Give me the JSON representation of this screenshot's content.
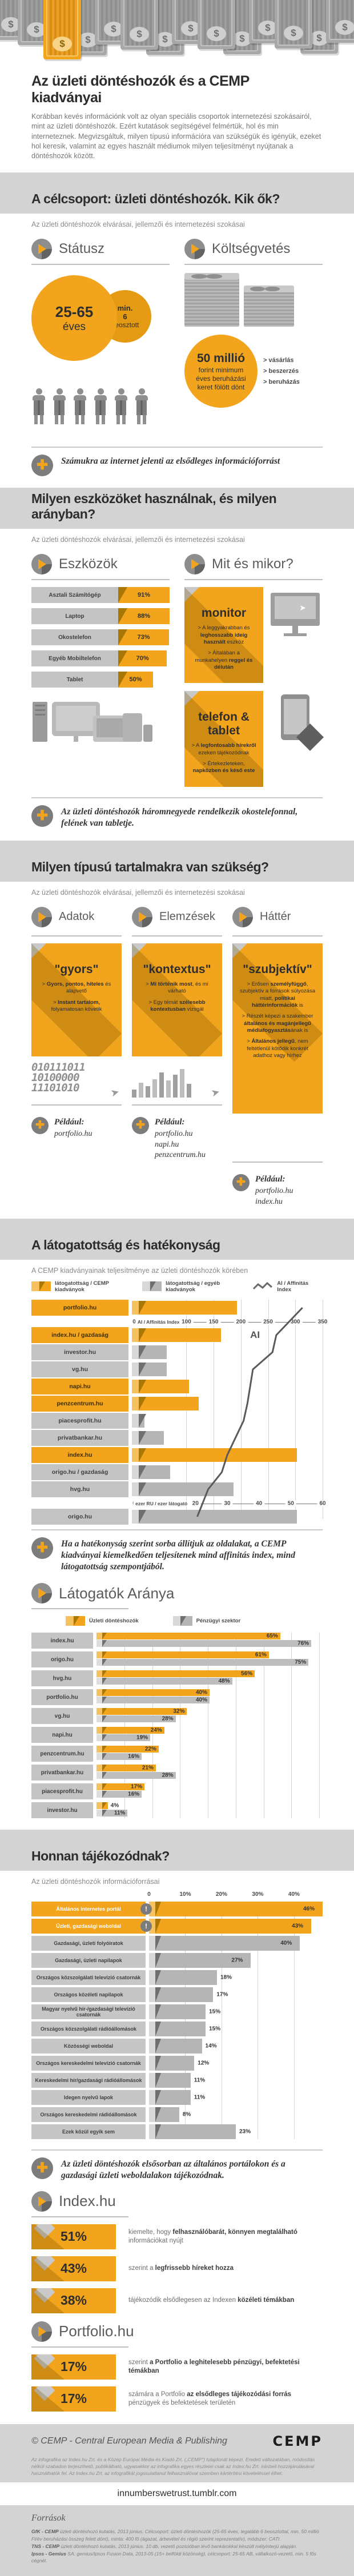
{
  "accent_color": "#F2A41C",
  "gray_color": "#B5B5B5",
  "header": {
    "title": "Az üzleti döntéshozók és a CEMP kiadványai",
    "intro": "Korábban kevés információnk volt az olyan speciális csoportok internetezési szokásairól, mint az üzleti döntéshozók. Ezért kutatások segítségével felmértük, hol és min interneteznek. Megvizsgáltuk, milyen típusú információra van szükségük és igényük, ezeket hol keresik, valamint az egyes használt médiumok milyen teljesítményt nyújtanak a döntéshozók között."
  },
  "target_section": {
    "band_title": "A célcsoport: üzleti döntéshozók. Kik ők?",
    "subtitle": "Az üzleti döntéshozók elvárásai, jellemzői és internetezési szokásai",
    "status": {
      "heading": "Státusz",
      "age_top": "25-65",
      "age_bottom": "éves",
      "small_circle_line1": "min.",
      "small_circle_line2": "6",
      "small_circle_line3": "beosztott",
      "people_count": 6
    },
    "budget": {
      "heading": "Költségvetés",
      "circle_big": "50 millió",
      "circle_lines": [
        "forint minimum",
        "éves beruházási",
        "keret fölött dönt"
      ],
      "bullets": [
        "> vásárlás",
        "> beszerzés",
        "> beruházás"
      ]
    },
    "note": "Számukra az internet jelenti az elsődleges információforrást"
  },
  "devices_section": {
    "band_title": "Milyen eszközöket használnak, és milyen arányban?",
    "subtitle": "Az üzleti döntéshozók elvárásai, jellemzői és internetezési szokásai",
    "tools_heading": "Eszközök",
    "when_heading": "Mit és mikor?",
    "cards": [
      {
        "title": "monitor",
        "bullets": [
          "> A leggyakrabban és **leghosszabb ideig használt** eszköz",
          "> Általában a munkahelyen **reggel és délután**"
        ]
      },
      {
        "title": "telefon & tablet",
        "bullets": [
          "> A **legfontosabb hírekről** ezeken tájékozódnak",
          "> Értekezleteken, **napközben és késő este**"
        ]
      }
    ],
    "note": "Az üzleti döntéshozók háromnegyede rendelkezik okostelefonnal, felének van tabletje."
  },
  "content_section": {
    "band_title": "Milyen típusú tartalmakra van szükség?",
    "subtitle": "Az üzleti döntéshozók elvárásai, jellemzői és internetezési szokásai",
    "example_label": "Például:",
    "columns": [
      {
        "heading": "Adatok",
        "card_title": "\"gyors\"",
        "bullets": [
          "> **Gyors, pontos, hiteles** és alapvető",
          "> **Instant tartalom,** folyamatosan követik"
        ],
        "art": "binary",
        "examples": [
          "portfolio.hu"
        ]
      },
      {
        "heading": "Elemzések",
        "card_title": "\"kontextus\"",
        "bullets": [
          "> **Mi történik most**, és mi várható",
          "> Egy témát **szélesebb kontextusban** vizsgál"
        ],
        "art": "bars",
        "examples": [
          "portfolio.hu",
          "napi.hu",
          "penzcentrum.hu"
        ]
      },
      {
        "heading": "Háttér",
        "card_title": "\"szubjektív\"",
        "bullets": [
          "> Erősen **személyfüggő**, szubjektív a források súlyozása miatt, **politikai háttérinformációk** is",
          "> Részét képezi a szakember **általános és magánjellegű médiafogyasztás**ának is",
          "> **Általános jellegű**, nem feltétlenül kötődik konkrét adathoz vagy hírhez"
        ],
        "art": "none",
        "examples": [
          "portfolio.hu",
          "index.hu"
        ]
      }
    ],
    "binary_lines": [
      "010111011",
      "10100000",
      "11101010"
    ],
    "minibar_heights": [
      14,
      26,
      20,
      32,
      44,
      30,
      40,
      50,
      24
    ]
  },
  "chart_data": [
    {
      "id": "performance",
      "type": "bar+line",
      "title": "A látogatottság és hatékonyság",
      "subtitle": "A CEMP kiadványainak teljesítménye az üzleti döntéshozók körében",
      "legend": [
        "látogatottság / CEMP kiadványok",
        "látogatottság / egyéb kiadványok",
        "AI / Affinitás Index"
      ],
      "top_axis": {
        "label": "AI / Affinitás Index",
        "ticks": [
          0,
          100,
          150,
          200,
          250,
          300,
          350
        ],
        "max": 350
      },
      "bottom_axis": {
        "label": "ezer RU / ezer látogató",
        "ticks": [
          0,
          20,
          30,
          40,
          50,
          60
        ],
        "max": 60
      },
      "ai_line_label": "AI",
      "rows": [
        {
          "label": "portfolio.hu",
          "cemp": true,
          "visitors": 33,
          "ai": 313
        },
        {
          "label": "index.hu / gazdaság",
          "cemp": true,
          "visitors": 28,
          "ai": 265
        },
        {
          "label": "investor.hu",
          "cemp": false,
          "visitors": 11,
          "ai": 258
        },
        {
          "label": "vg.hu",
          "cemp": false,
          "visitors": 11,
          "ai": 222
        },
        {
          "label": "napi.hu",
          "cemp": true,
          "visitors": 18,
          "ai": 217
        },
        {
          "label": "penzcentrum.hu",
          "cemp": true,
          "visitors": 21,
          "ai": 212
        },
        {
          "label": "piacesprofit.hu",
          "cemp": false,
          "visitors": 4,
          "ai": 205
        },
        {
          "label": "privatbankar.hu",
          "cemp": false,
          "visitors": 10,
          "ai": 190
        },
        {
          "label": "index.hu",
          "cemp": true,
          "visitors": 52,
          "ai": 175
        },
        {
          "label": "origo.hu / gazdaság",
          "cemp": false,
          "visitors": 12,
          "ai": 165
        },
        {
          "label": "hvg.hu",
          "cemp": false,
          "visitors": 32,
          "ai": 140
        },
        {
          "label": "origo.hu",
          "cemp": false,
          "visitors": 52,
          "ai": 120
        }
      ],
      "note": "Ha a hatékonyság szerint sorba állítjuk az oldalakat, a CEMP kiadványai kiemelkedően teljesítenek mind affinitás index, mind látogatottság szempontjából."
    },
    {
      "id": "visitors",
      "type": "grouped-bar",
      "title": "Látogatók Aránya",
      "legend": [
        "Üzleti döntéshozók",
        "Pénzügyi szektor"
      ],
      "unit": "%",
      "xlim": [
        0,
        80
      ],
      "rows": [
        {
          "label": "index.hu",
          "dontes": 65,
          "penzugy": 76
        },
        {
          "label": "origo.hu",
          "dontes": 61,
          "penzugy": 75
        },
        {
          "label": "hvg.hu",
          "dontes": 56,
          "penzugy": 48
        },
        {
          "label": "portfolio.hu",
          "dontes": 40,
          "penzugy": 40
        },
        {
          "label": "vg.hu",
          "dontes": 32,
          "penzugy": 28
        },
        {
          "label": "napi.hu",
          "dontes": 24,
          "penzugy": 19
        },
        {
          "label": "penzcentrum.hu",
          "dontes": 22,
          "penzugy": 16
        },
        {
          "label": "privatbankar.hu",
          "dontes": 21,
          "penzugy": 28
        },
        {
          "label": "piacesprofit.hu",
          "dontes": 17,
          "penzugy": 16
        },
        {
          "label": "investor.hu",
          "dontes": 4,
          "penzugy": 11
        }
      ]
    },
    {
      "id": "info_sources",
      "type": "bar",
      "title": "Honnan tájékozódnak?",
      "subtitle": "Az üzleti döntéshozók információforrásai",
      "axis_ticks": [
        0,
        10,
        20,
        30,
        40
      ],
      "unit": "%",
      "xlim": [
        0,
        46
      ],
      "rows": [
        {
          "label": "Általános internetes portál",
          "value": 46,
          "highlight": true
        },
        {
          "label": "Üzleti, gazdasági weboldal",
          "value": 43,
          "highlight": true
        },
        {
          "label": "Gazdasági, üzleti folyóiratok",
          "value": 40,
          "highlight": false
        },
        {
          "label": "Gazdasági, üzleti napilapok",
          "value": 27,
          "highlight": false
        },
        {
          "label": "Országos közszolgálati televízió csatornák",
          "value": 18,
          "highlight": false
        },
        {
          "label": "Országos közéleti napilapok",
          "value": 17,
          "highlight": false
        },
        {
          "label": "Magyar nyelvű hír-/gazdasági televízió csatornák",
          "value": 15,
          "highlight": false
        },
        {
          "label": "Országos közszolgálati rádióállomások",
          "value": 15,
          "highlight": false
        },
        {
          "label": "Közösségi weboldal",
          "value": 14,
          "highlight": false
        },
        {
          "label": "Országos kereskedelmi televízió csatornák",
          "value": 12,
          "highlight": false
        },
        {
          "label": "Kereskedelmi hír/gazdasági rádióállomások",
          "value": 11,
          "highlight": false
        },
        {
          "label": "Idegen nyelvű lapok",
          "value": 11,
          "highlight": false
        },
        {
          "label": "Országos kereskedelmi rádióállomások",
          "value": 8,
          "highlight": false
        },
        {
          "label": "Ezek közül egyik sem",
          "value": 23,
          "highlight": false
        }
      ],
      "note": "Az üzleti döntéshozók elsősorban az általános portálokon és a gazdasági üzleti weboldalakon tájékozódnak."
    },
    {
      "id": "device_usage",
      "type": "bar",
      "title": "Eszközök",
      "unit": "%",
      "xlim": [
        0,
        100
      ],
      "rows": [
        {
          "label": "Asztali Számítógép",
          "value": 91
        },
        {
          "label": "Laptop",
          "value": 88
        },
        {
          "label": "Okostelefon",
          "value": 73
        },
        {
          "label": "Egyéb Mobiltelefon",
          "value": 70
        },
        {
          "label": "Tablet",
          "value": 50
        }
      ]
    },
    {
      "id": "index_hu_stats",
      "type": "stat-list",
      "title": "Index.hu",
      "stats": [
        {
          "value": "51%",
          "text": "kiemelte, hogy **felhasználóbarát, könnyen megtalálható** információkat nyújt"
        },
        {
          "value": "43%",
          "text": "szerint a **legfrissebb híreket hozza**"
        },
        {
          "value": "38%",
          "text": "tájékozódik elsődlegesen az Indexen **közéleti témákban**"
        }
      ]
    },
    {
      "id": "portfolio_hu_stats",
      "type": "stat-list",
      "title": "Portfolio.hu",
      "stats": [
        {
          "value": "17%",
          "text": "szerint **a Portfolio a leghitelesebb pénzügyi, befektetési témákban**"
        },
        {
          "value": "17%",
          "text": "számára a Portfolio **az elsődleges tájékozódási forrás** pénzügyek és befektetések területén"
        }
      ]
    }
  ],
  "footer": {
    "copyright": "© CEMP - Central European Media & Publishing",
    "logo": "CEMP",
    "fineprint": "Az infografika az Index.hu Zrt. és a Közép Európai Média és Kiadó Zrt. („CEMP\") tulajdonát képezi. Eredeti változatában, módosítás nélkül szabadon terjeszthető, publikálható, ugyanakkor az infografika egyes részletei csak az Index.hu Zrt. írásbeli hozzájárulásával használhatók fel. Az Index.hu Zrt. az infografikát jogosulatlanul felhasználóval szemben kártérítési követeléssel élhet.",
    "tumblr": "innumberswetrust.tumblr.com",
    "sources_title": "Források",
    "sources": [
      "**GfK - CEMP** üzleti döntéshozó kutatás, 2013 június. Célcsoport: üzleti döntéshozók (25-65 éves, legalább 6 beosztottal, min. 50 millió Ft/év beruházási összeg felett dönt), minta: 400 fő (ágazat, árbevétel és régió szerint reprezentatív), módszer: CATI.",
      "**TNS - CEMP** üzleti döntéshozó kutatás, 2013 június. 10 db, vezető pozícióban lévő bankárokkal készült mélyinterjú alapján.",
      "**Ipsos - Gemius** SA: gemius/Ipsos Fusion Data, 2013-05 (15+ belföldi közönség), célcsoport: 25-65 AB, vállalkozó-vezető, min. 5 fős cégnél."
    ]
  }
}
